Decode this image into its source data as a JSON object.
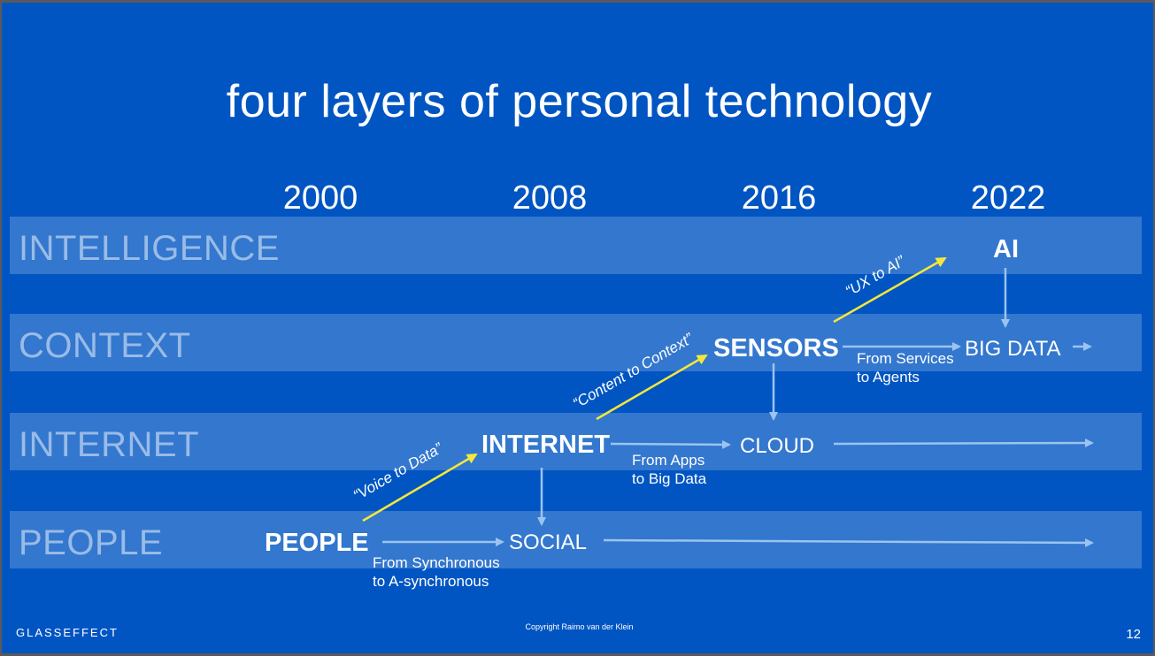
{
  "slide": {
    "title": "four layers of personal technology",
    "years": [
      "2000",
      "2008",
      "2016",
      "2022"
    ],
    "layers": [
      "INTELLIGENCE",
      "CONTEXT",
      "INTERNET",
      "PEOPLE"
    ],
    "nodes": {
      "people": "PEOPLE",
      "social": "SOCIAL",
      "internet": "INTERNET",
      "cloud": "CLOUD",
      "sensors": "SENSORS",
      "big_data": "BIG DATA",
      "ai": "AI"
    },
    "transitions": {
      "sync_line1": "From Synchronous",
      "sync_line2": "to A-synchronous",
      "apps_line1": "From Apps",
      "apps_line2": "to Big Data",
      "services_line1": "From Services",
      "services_line2": "to Agents"
    },
    "shifts": {
      "voice_to_data": "“Voice to Data”",
      "content_to_context": "“Content to Context”",
      "ux_to_ai": "“UX to AI”"
    },
    "footer": {
      "brand": "GLASSEFFECT",
      "copyright": "Copyright Raimo van der Klein",
      "page_number": "12"
    },
    "colors": {
      "background": "#0055c2",
      "shift_arrow": "#f5e83a",
      "flow_arrow": "#9cc3f0"
    }
  }
}
